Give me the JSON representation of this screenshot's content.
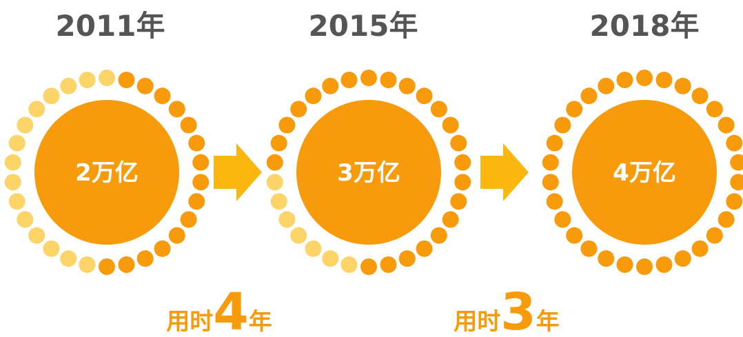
{
  "stages": [
    {
      "year": "2011年",
      "amount": "2万亿"
    },
    {
      "year": "2015年",
      "amount": "3万亿"
    },
    {
      "year": "2018年",
      "amount": "4万亿"
    }
  ],
  "transitions": [
    {
      "prefix": "用时",
      "number": 4,
      "suffix": "年"
    },
    {
      "prefix": "用时",
      "number": 3,
      "suffix": "年"
    }
  ]
}
